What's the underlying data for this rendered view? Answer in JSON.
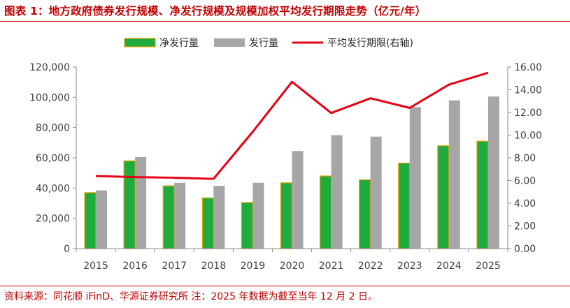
{
  "header": {
    "title": "图表 1：地方政府债券发行规模、净发行规模及规模加权平均发行期限走势（亿元/年）"
  },
  "footer": {
    "source": "资料来源：同花顺 iFinD、华源证券研究所 注：2025 年数据为截至当年 12 月 2 日。"
  },
  "colors": {
    "title_red": "#c00000",
    "net_issuance_green": "#1fab3e",
    "net_issuance_border": "#e8a200",
    "issuance_gray": "#a6a6a6",
    "maturity_line_red": "#e60012",
    "axis_text": "#404040"
  },
  "chart_data": {
    "type": "bar",
    "categories": [
      "2015",
      "2016",
      "2017",
      "2018",
      "2019",
      "2020",
      "2021",
      "2022",
      "2023",
      "2024",
      "2025"
    ],
    "series": [
      {
        "name": "净发行量",
        "type": "bar",
        "axis": "left",
        "values": [
          37000,
          58000,
          41500,
          33500,
          30500,
          43500,
          48000,
          45500,
          56500,
          68000,
          71000
        ]
      },
      {
        "name": "发行量",
        "type": "bar",
        "axis": "left",
        "values": [
          38500,
          60500,
          43500,
          41500,
          43500,
          64500,
          75000,
          74000,
          93500,
          98000,
          100500
        ]
      },
      {
        "name": "平均发行期限(右轴)",
        "type": "line",
        "axis": "right",
        "values": [
          6.4,
          6.3,
          6.25,
          6.15,
          10.3,
          14.7,
          11.95,
          13.25,
          12.4,
          14.45,
          15.5
        ]
      }
    ],
    "yleft": {
      "lim": [
        0,
        120000
      ],
      "ticks": [
        0,
        20000,
        40000,
        60000,
        80000,
        100000,
        120000
      ],
      "tick_labels": [
        "0",
        "20,000",
        "40,000",
        "60,000",
        "80,000",
        "100,000",
        "120,000"
      ]
    },
    "yright": {
      "lim": [
        0,
        16
      ],
      "ticks": [
        0,
        2,
        4,
        6,
        8,
        10,
        12,
        14,
        16
      ],
      "tick_labels": [
        "0.00",
        "2.00",
        "4.00",
        "6.00",
        "8.00",
        "10.00",
        "12.00",
        "14.00",
        "16.00"
      ]
    },
    "grid": false,
    "legend": "top-center"
  }
}
